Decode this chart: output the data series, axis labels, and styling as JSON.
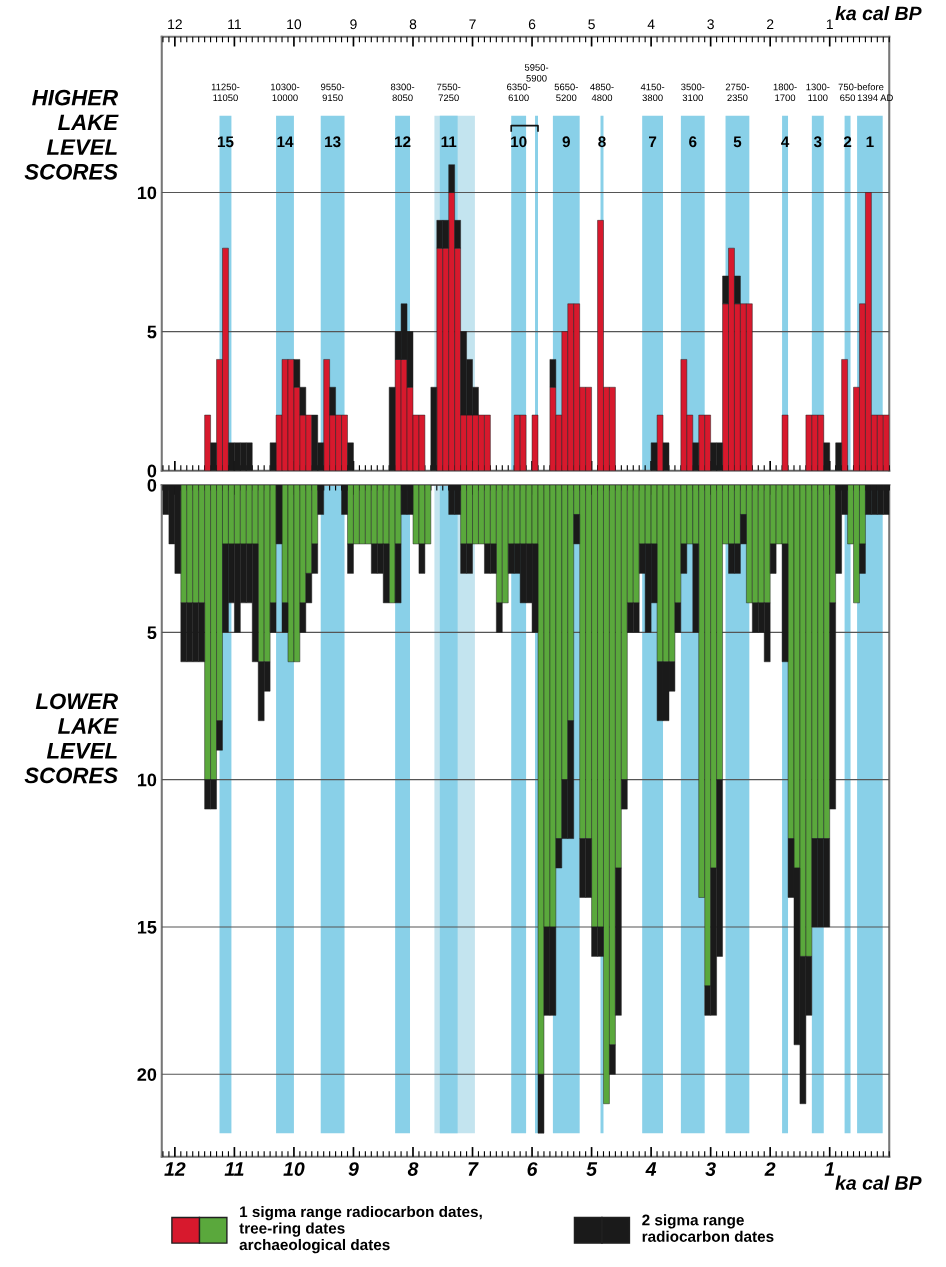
{
  "chart_data": [
    {
      "type": "bar",
      "stacked": true,
      "ylabel": "HIGHER\nLAKE\nLEVEL\nSCORES",
      "xlabel": "ka cal BP",
      "x": [
        12.15,
        12.05,
        11.95,
        11.85,
        11.75,
        11.65,
        11.55,
        11.45,
        11.35,
        11.25,
        11.15,
        11.05,
        10.95,
        10.85,
        10.75,
        10.65,
        10.55,
        10.45,
        10.35,
        10.25,
        10.15,
        10.05,
        9.95,
        9.85,
        9.75,
        9.65,
        9.55,
        9.45,
        9.35,
        9.25,
        9.15,
        9.05,
        8.95,
        8.85,
        8.75,
        8.65,
        8.55,
        8.45,
        8.35,
        8.25,
        8.15,
        8.05,
        7.95,
        7.85,
        7.75,
        7.65,
        7.55,
        7.45,
        7.35,
        7.25,
        7.15,
        7.05,
        6.95,
        6.85,
        6.75,
        6.65,
        6.55,
        6.45,
        6.35,
        6.25,
        6.15,
        6.05,
        5.95,
        5.85,
        5.75,
        5.65,
        5.55,
        5.45,
        5.35,
        5.25,
        5.15,
        5.05,
        4.95,
        4.85,
        4.75,
        4.65,
        4.55,
        4.45,
        4.35,
        4.25,
        4.15,
        4.05,
        3.95,
        3.85,
        3.75,
        3.65,
        3.55,
        3.45,
        3.35,
        3.25,
        3.15,
        3.05,
        2.95,
        2.85,
        2.75,
        2.65,
        2.55,
        2.45,
        2.35,
        2.25,
        2.15,
        2.05,
        1.95,
        1.85,
        1.75,
        1.65,
        1.55,
        1.45,
        1.35,
        1.25,
        1.15,
        1.05,
        0.95,
        0.85,
        0.75,
        0.65,
        0.55,
        0.45,
        0.35,
        0.25,
        0.15,
        0.05
      ],
      "series": [
        {
          "color": "#d7192d",
          "values": [
            0,
            0,
            0,
            0,
            0,
            0,
            0,
            2,
            0,
            4,
            8,
            0,
            0,
            0,
            0,
            0,
            0,
            0,
            0,
            2,
            4,
            4,
            3,
            2,
            2,
            0,
            0,
            4,
            2,
            2,
            2,
            0,
            0,
            0,
            0,
            0,
            0,
            0,
            0,
            4,
            4,
            3,
            2,
            2,
            0,
            0,
            8,
            8,
            10,
            8,
            2,
            2,
            2,
            2,
            2,
            0,
            0,
            0,
            0,
            2,
            2,
            0,
            2,
            0,
            0,
            3,
            2,
            5,
            6,
            6,
            3,
            3,
            0,
            9,
            3,
            3,
            0,
            0,
            0,
            0,
            0,
            0,
            0,
            2,
            0,
            0,
            0,
            4,
            2,
            0,
            2,
            2,
            0,
            0,
            6,
            8,
            6,
            6,
            6,
            0,
            0,
            0,
            0,
            0,
            2,
            0,
            0,
            0,
            2,
            2,
            2,
            0,
            0,
            0,
            4,
            0,
            3,
            6,
            10,
            2,
            2,
            2
          ]
        },
        {
          "color": "#1a1a1a",
          "values": [
            0,
            0,
            0,
            0,
            0,
            0,
            0,
            0,
            1,
            0,
            0,
            1,
            1,
            1,
            1,
            0,
            0,
            0,
            1,
            0,
            0,
            0,
            1,
            1,
            0,
            2,
            1,
            0,
            1,
            0,
            0,
            1,
            0,
            0,
            0,
            0,
            0,
            0,
            3,
            1,
            2,
            2,
            0,
            0,
            0,
            3,
            1,
            1,
            1,
            1,
            3,
            2,
            1,
            0,
            0,
            0,
            0,
            0,
            0,
            0,
            0,
            0,
            0,
            0,
            0,
            1,
            0,
            0,
            0,
            0,
            0,
            0,
            0,
            0,
            0,
            0,
            0,
            0,
            0,
            0,
            0,
            0,
            1,
            0,
            1,
            0,
            0,
            0,
            0,
            1,
            0,
            0,
            1,
            1,
            1,
            0,
            1,
            0,
            0,
            0,
            0,
            0,
            0,
            0,
            0,
            0,
            0,
            0,
            0,
            0,
            0,
            1,
            0,
            1,
            0,
            0,
            0,
            0,
            0,
            0,
            0,
            0
          ]
        }
      ],
      "xlim": [
        12.22,
        0
      ],
      "xticks": [
        {
          "value": 12,
          "label": "12"
        },
        {
          "value": 11,
          "label": "11"
        },
        {
          "value": 10,
          "label": "10"
        },
        {
          "value": 9,
          "label": "9"
        },
        {
          "value": 8,
          "label": "8"
        },
        {
          "value": 7,
          "label": "7"
        },
        {
          "value": 6,
          "label": "6"
        },
        {
          "value": 5,
          "label": "5"
        },
        {
          "value": 4,
          "label": "4"
        },
        {
          "value": 3,
          "label": "3"
        },
        {
          "value": 2,
          "label": "2"
        },
        {
          "value": 1,
          "label": "1"
        }
      ],
      "ylim": [
        0,
        15.6
      ],
      "yticks": [
        0,
        5,
        10
      ],
      "grid": "y",
      "bands": [
        {
          "axis": "x",
          "from": 11.25,
          "to": 11.05,
          "label": "15"
        },
        {
          "axis": "x",
          "from": 10.3,
          "to": 10.0,
          "label": "14"
        },
        {
          "axis": "x",
          "from": 9.55,
          "to": 9.15,
          "label": "13"
        },
        {
          "axis": "x",
          "from": 8.3,
          "to": 8.05,
          "label": "12"
        },
        {
          "axis": "x",
          "from": 7.64,
          "to": 6.96,
          "label": null,
          "color": "#c3e4ef"
        },
        {
          "axis": "x",
          "from": 7.55,
          "to": 7.25,
          "label": "11"
        },
        {
          "axis": "x",
          "from": 6.35,
          "to": 6.1,
          "label": "10"
        },
        {
          "axis": "x",
          "from": 5.95,
          "to": 5.9,
          "label": null
        },
        {
          "axis": "x",
          "from": 5.65,
          "to": 5.2,
          "label": "9"
        },
        {
          "axis": "x",
          "from": 4.85,
          "to": 4.8,
          "label": "8"
        },
        {
          "axis": "x",
          "from": 4.15,
          "to": 3.8,
          "label": "7"
        },
        {
          "axis": "x",
          "from": 3.5,
          "to": 3.1,
          "label": "6"
        },
        {
          "axis": "x",
          "from": 2.75,
          "to": 2.35,
          "label": "5"
        },
        {
          "axis": "x",
          "from": 1.8,
          "to": 1.7,
          "label": "4"
        },
        {
          "axis": "x",
          "from": 1.3,
          "to": 1.1,
          "label": "3"
        },
        {
          "axis": "x",
          "from": 0.75,
          "to": 0.65,
          "label": "2"
        },
        {
          "axis": "x",
          "from": 0.54,
          "to": 0.11,
          "label": "1"
        }
      ],
      "annotations": [
        "11250-\n11050",
        "10300-\n10000",
        "9550-\n9150",
        "8300-\n8050",
        "7550-\n7250",
        "6350-\n6100",
        "5950-\n5900",
        "5650-\n5200",
        "4850-\n4800",
        "4150-\n3800",
        "3500-\n3100",
        "2750-\n2350",
        "1800-\n1700",
        "1300-\n1100",
        "750-\n650",
        "before\n1394 AD"
      ]
    },
    {
      "type": "bar",
      "stacked": true,
      "ylabel": "LOWER\nLAKE\nLEVEL\nSCORES",
      "xlabel": "ka cal BP",
      "legend": "bottom",
      "x": [
        12.15,
        12.05,
        11.95,
        11.85,
        11.75,
        11.65,
        11.55,
        11.45,
        11.35,
        11.25,
        11.15,
        11.05,
        10.95,
        10.85,
        10.75,
        10.65,
        10.55,
        10.45,
        10.35,
        10.25,
        10.15,
        10.05,
        9.95,
        9.85,
        9.75,
        9.65,
        9.55,
        9.45,
        9.35,
        9.25,
        9.15,
        9.05,
        8.95,
        8.85,
        8.75,
        8.65,
        8.55,
        8.45,
        8.35,
        8.25,
        8.15,
        8.05,
        7.95,
        7.85,
        7.75,
        7.65,
        7.55,
        7.45,
        7.35,
        7.25,
        7.15,
        7.05,
        6.95,
        6.85,
        6.75,
        6.65,
        6.55,
        6.45,
        6.35,
        6.25,
        6.15,
        6.05,
        5.95,
        5.85,
        5.75,
        5.65,
        5.55,
        5.45,
        5.35,
        5.25,
        5.15,
        5.05,
        4.95,
        4.85,
        4.75,
        4.65,
        4.55,
        4.45,
        4.35,
        4.25,
        4.15,
        4.05,
        3.95,
        3.85,
        3.75,
        3.65,
        3.55,
        3.45,
        3.35,
        3.25,
        3.15,
        3.05,
        2.95,
        2.85,
        2.75,
        2.65,
        2.55,
        2.45,
        2.35,
        2.25,
        2.15,
        2.05,
        1.95,
        1.85,
        1.75,
        1.65,
        1.55,
        1.45,
        1.35,
        1.25,
        1.15,
        1.05,
        0.95,
        0.85,
        0.75,
        0.65,
        0.55,
        0.45,
        0.35,
        0.25,
        0.15,
        0.05
      ],
      "series": [
        {
          "name": "1 sigma range radiocarbon dates,\ntree-ring dates\narchaeological dates",
          "color": "#5aa83c",
          "values": [
            0,
            0,
            0,
            4,
            4,
            4,
            4,
            10,
            10,
            8,
            2,
            2,
            2,
            2,
            2,
            2,
            6,
            6,
            4,
            0,
            4,
            6,
            6,
            4,
            3,
            2,
            0,
            0,
            0,
            0,
            0,
            2,
            2,
            2,
            2,
            2,
            2,
            2,
            4,
            2,
            0,
            0,
            2,
            2,
            2,
            0,
            0,
            0,
            0,
            0,
            2,
            2,
            2,
            2,
            2,
            2,
            4,
            4,
            2,
            2,
            2,
            2,
            2,
            20,
            15,
            15,
            12,
            10,
            8,
            1,
            12,
            12,
            15,
            15,
            21,
            19,
            13,
            10,
            4,
            4,
            2,
            2,
            2,
            6,
            6,
            6,
            4,
            2,
            2,
            2,
            14,
            17,
            13,
            10,
            2,
            2,
            2,
            1,
            4,
            4,
            4,
            4,
            2,
            2,
            2,
            12,
            13,
            16,
            16,
            12,
            12,
            12,
            4,
            0,
            0,
            2,
            4,
            2,
            0,
            0,
            0,
            0
          ]
        },
        {
          "name": "2 sigma range\nradiocarbon dates",
          "color": "#1a1a1a",
          "values": [
            1,
            2,
            3,
            2,
            2,
            2,
            2,
            1,
            1,
            1,
            3,
            2,
            3,
            2,
            2,
            4,
            2,
            1,
            1,
            2,
            1,
            0,
            0,
            1,
            1,
            1,
            1,
            0,
            0,
            0,
            1,
            1,
            0,
            0,
            0,
            1,
            1,
            2,
            0,
            2,
            1,
            1,
            0,
            1,
            0,
            0,
            0,
            0,
            1,
            1,
            1,
            1,
            0,
            0,
            1,
            1,
            1,
            0,
            1,
            1,
            2,
            2,
            3,
            2,
            3,
            3,
            1,
            2,
            4,
            1,
            2,
            2,
            1,
            1,
            0,
            1,
            5,
            1,
            1,
            1,
            1,
            3,
            2,
            2,
            2,
            1,
            1,
            1,
            0,
            3,
            0,
            1,
            5,
            6,
            0,
            1,
            1,
            1,
            0,
            1,
            1,
            2,
            1,
            0,
            4,
            2,
            6,
            5,
            2,
            3,
            3,
            3,
            7,
            3,
            1,
            0,
            0,
            1,
            1,
            1,
            1,
            1
          ]
        }
      ],
      "xlim": [
        12.22,
        0
      ],
      "xticks": [
        {
          "value": 12,
          "label": "12"
        },
        {
          "value": 11,
          "label": "11"
        },
        {
          "value": 10,
          "label": "10"
        },
        {
          "value": 9,
          "label": "9"
        },
        {
          "value": 8,
          "label": "8"
        },
        {
          "value": 7,
          "label": "7"
        },
        {
          "value": 6,
          "label": "6"
        },
        {
          "value": 5,
          "label": "5"
        },
        {
          "value": 4,
          "label": "4"
        },
        {
          "value": 3,
          "label": "3"
        },
        {
          "value": 2,
          "label": "2"
        },
        {
          "value": 1,
          "label": "1"
        }
      ],
      "ylim": [
        22.8,
        0
      ],
      "yticks": [
        0,
        5,
        10,
        15,
        20
      ],
      "grid": "y",
      "bands": [
        {
          "axis": "x",
          "from": 11.25,
          "to": 11.05
        },
        {
          "axis": "x",
          "from": 10.3,
          "to": 10.0
        },
        {
          "axis": "x",
          "from": 9.55,
          "to": 9.15
        },
        {
          "axis": "x",
          "from": 8.3,
          "to": 8.05
        },
        {
          "axis": "x",
          "from": 7.64,
          "to": 6.96,
          "color": "#c3e4ef"
        },
        {
          "axis": "x",
          "from": 7.55,
          "to": 7.25
        },
        {
          "axis": "x",
          "from": 6.35,
          "to": 6.1
        },
        {
          "axis": "x",
          "from": 5.95,
          "to": 5.9
        },
        {
          "axis": "x",
          "from": 5.65,
          "to": 5.2
        },
        {
          "axis": "x",
          "from": 4.85,
          "to": 4.8
        },
        {
          "axis": "x",
          "from": 4.15,
          "to": 3.8
        },
        {
          "axis": "x",
          "from": 3.5,
          "to": 3.1
        },
        {
          "axis": "x",
          "from": 2.75,
          "to": 2.35
        },
        {
          "axis": "x",
          "from": 1.8,
          "to": 1.7
        },
        {
          "axis": "x",
          "from": 1.3,
          "to": 1.1
        },
        {
          "axis": "x",
          "from": 0.75,
          "to": 0.65
        },
        {
          "axis": "x",
          "from": 0.54,
          "to": 0.11
        }
      ]
    }
  ]
}
